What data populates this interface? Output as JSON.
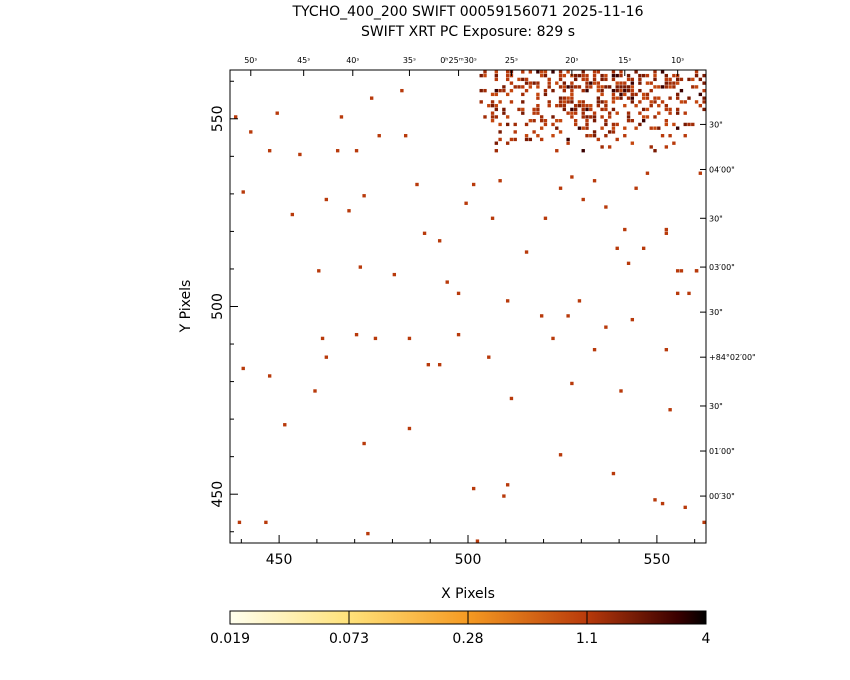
{
  "header": {
    "line1": "TYCHO_400_200 SWIFT 00059156071 2025-11-16",
    "line2": "SWIFT XRT PC Exposure:        829 s"
  },
  "chart_data": {
    "type": "heatmap",
    "title": "TYCHO_400_200 SWIFT 00059156071 2025-11-16",
    "subtitle": "SWIFT XRT PC Exposure:        829 s",
    "xlabel": "X Pixels",
    "ylabel": "Y Pixels",
    "xlim": [
      437,
      563
    ],
    "ylim": [
      437,
      563
    ],
    "x_ticks": [
      450,
      500,
      550
    ],
    "y_ticks": [
      450,
      500,
      550
    ],
    "ra_ticks": [
      {
        "label": "50ˢ",
        "x": 442.5
      },
      {
        "label": "45ˢ",
        "x": 456.5
      },
      {
        "label": "40ˢ",
        "x": 469.5
      },
      {
        "label": "35ˢ",
        "x": 484.5
      },
      {
        "label": "0ʰ25ᵐ30ˢ",
        "x": 497.5
      },
      {
        "label": "25ˢ",
        "x": 511.5
      },
      {
        "label": "20ˢ",
        "x": 527.5
      },
      {
        "label": "15ˢ",
        "x": 541.5
      },
      {
        "label": "10ˢ",
        "x": 555.5
      }
    ],
    "dec_ticks": [
      {
        "label": "30\"",
        "y": 548.5
      },
      {
        "label": "04′00\"",
        "y": 536.5
      },
      {
        "label": "30\"",
        "y": 523.5
      },
      {
        "label": "03′00\"",
        "y": 510.5
      },
      {
        "label": "30\"",
        "y": 498.5
      },
      {
        "label": "+84°02′00\"",
        "y": 486.5
      },
      {
        "label": "30\"",
        "y": 473.5
      },
      {
        "label": "01′00\"",
        "y": 461.5
      },
      {
        "label": "00′30\"",
        "y": 449.5
      }
    ],
    "colorbar": {
      "ticks": [
        "0.019",
        "0.073",
        "0.28",
        "1.1",
        "4"
      ],
      "colors": [
        "#ffffee",
        "#ffe27a",
        "#f59a22",
        "#b83a0b",
        "#000000"
      ]
    },
    "scatter_counts": {
      "low": [
        [
          438,
          550
        ],
        [
          442,
          546
        ],
        [
          440,
          530
        ],
        [
          455,
          540
        ],
        [
          453,
          524
        ],
        [
          460,
          509
        ],
        [
          462,
          528
        ],
        [
          447,
          541
        ],
        [
          449,
          551
        ],
        [
          465,
          541
        ],
        [
          468,
          525
        ],
        [
          466,
          550
        ],
        [
          472,
          529
        ],
        [
          470,
          541
        ],
        [
          474,
          555
        ],
        [
          476,
          545
        ],
        [
          483,
          545
        ],
        [
          482,
          557
        ],
        [
          486,
          532
        ],
        [
          488,
          519
        ],
        [
          492,
          517
        ],
        [
          494,
          506
        ],
        [
          497,
          503
        ],
        [
          499,
          527
        ],
        [
          501,
          532
        ],
        [
          506,
          523
        ],
        [
          508,
          533
        ],
        [
          510,
          501
        ],
        [
          515,
          514
        ],
        [
          520,
          523
        ],
        [
          524,
          531
        ],
        [
          527,
          534
        ],
        [
          530,
          528
        ],
        [
          533,
          533
        ],
        [
          536,
          526
        ],
        [
          539,
          515
        ],
        [
          541,
          520
        ],
        [
          544,
          531
        ],
        [
          547,
          535
        ],
        [
          552,
          520
        ],
        [
          555,
          509
        ],
        [
          558,
          503
        ],
        [
          561,
          535
        ],
        [
          560,
          509
        ],
        [
          552,
          519
        ],
        [
          526,
          497
        ],
        [
          529,
          501
        ],
        [
          536,
          494
        ],
        [
          543,
          496
        ],
        [
          480,
          508
        ],
        [
          471,
          510
        ],
        [
          461,
          491
        ],
        [
          462,
          486
        ],
        [
          470,
          492
        ],
        [
          475,
          491
        ],
        [
          484,
          491
        ],
        [
          489,
          484
        ],
        [
          492,
          484
        ],
        [
          497,
          492
        ],
        [
          505,
          486
        ],
        [
          511,
          475
        ],
        [
          527,
          479
        ],
        [
          533,
          488
        ],
        [
          540,
          477
        ],
        [
          552,
          488
        ],
        [
          553,
          472
        ],
        [
          459,
          477
        ],
        [
          447,
          481
        ],
        [
          440,
          483
        ],
        [
          451,
          468
        ],
        [
          472,
          463
        ],
        [
          484,
          467
        ],
        [
          501,
          451
        ],
        [
          509,
          449
        ],
        [
          510,
          452
        ],
        [
          524,
          460
        ],
        [
          538,
          455
        ],
        [
          549,
          448
        ],
        [
          551,
          447
        ],
        [
          557,
          446
        ],
        [
          562,
          442
        ],
        [
          446,
          442
        ],
        [
          439,
          442
        ],
        [
          473,
          439
        ],
        [
          502,
          437
        ],
        [
          555,
          503
        ],
        [
          556,
          509
        ],
        [
          560,
          509
        ],
        [
          542,
          511
        ],
        [
          546,
          515
        ],
        [
          519,
          497
        ],
        [
          522,
          491
        ]
      ],
      "high_region": {
        "x": [
          503,
          563
        ],
        "y": [
          541,
          563
        ]
      }
    }
  }
}
